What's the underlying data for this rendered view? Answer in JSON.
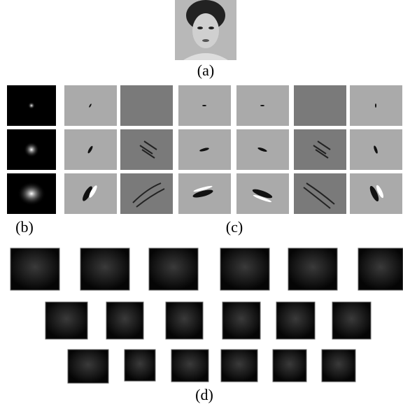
{
  "figure": {
    "labels": {
      "a": "(a)",
      "b": "(b)",
      "c": "(c)",
      "d": "(d)"
    }
  }
}
